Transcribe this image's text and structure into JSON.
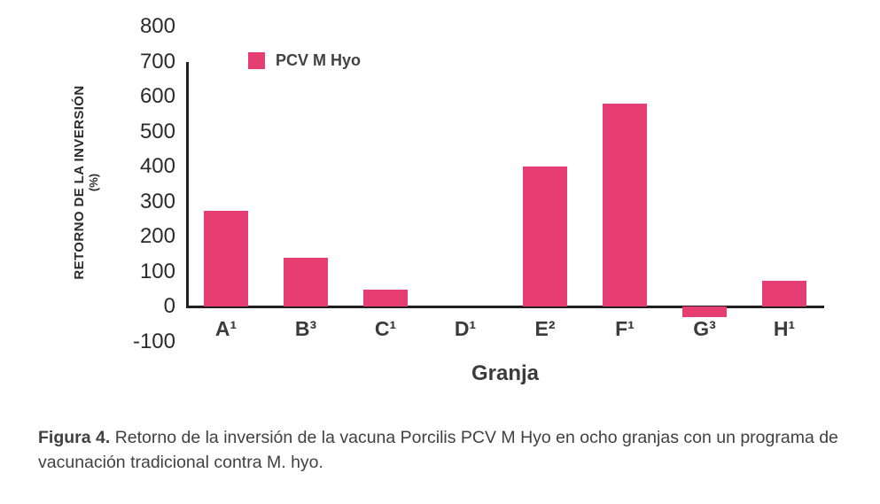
{
  "colors": {
    "bar": "#E63E72",
    "axis": "#231F20",
    "text": "#414042"
  },
  "legend": {
    "label": "PCV M Hyo"
  },
  "chart_data": {
    "type": "bar",
    "title": "",
    "xlabel": "Granja",
    "ylabel_line1": "RETORNO DE LA INVERSIÓN",
    "ylabel_line2": "(%)",
    "ylim": [
      -100,
      800
    ],
    "yticks": [
      800,
      700,
      600,
      500,
      400,
      300,
      200,
      100,
      0,
      -100
    ],
    "categories": [
      "A¹",
      "B³",
      "C¹",
      "D¹",
      "E²",
      "F¹",
      "G³",
      "H¹"
    ],
    "series": [
      {
        "name": "PCV M Hyo",
        "values": [
          275,
          140,
          50,
          0,
          400,
          580,
          -30,
          75
        ]
      }
    ],
    "grid": false,
    "legend_position": "top-left",
    "axis_top_value": 700
  },
  "caption": {
    "label": "Figura 4.",
    "text": " Retorno de la inversión de la vacuna Porcilis PCV M Hyo en ocho granjas con un programa de vacunación tradicional contra M. hyo."
  }
}
